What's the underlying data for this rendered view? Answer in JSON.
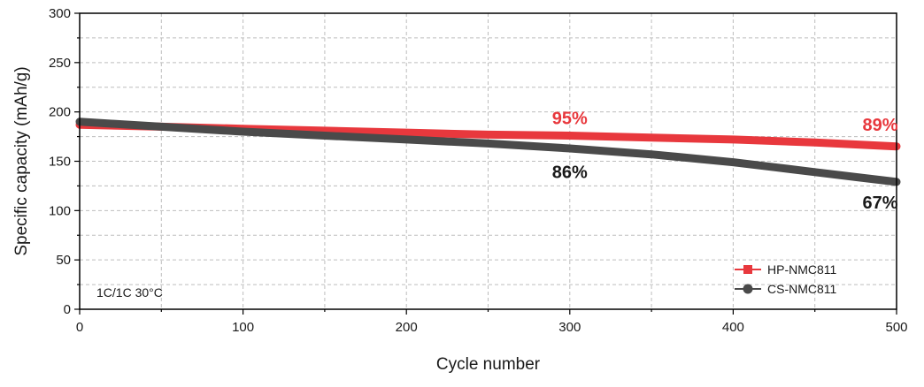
{
  "chart_data": {
    "type": "line",
    "xlabel": "Cycle number",
    "ylabel": "Specific capacity (mAh/g)",
    "xlim": [
      0,
      500
    ],
    "ylim": [
      0,
      300
    ],
    "xticks": [
      0,
      100,
      200,
      300,
      400,
      500
    ],
    "yticks": [
      0,
      50,
      100,
      150,
      200,
      250,
      300
    ],
    "grid": true,
    "legend_position": "bottom-right",
    "condition_label": "1C/1C 30°C",
    "series": [
      {
        "name": "HP-NMC811",
        "color": "#e8383d",
        "marker": "square",
        "x": [
          0,
          50,
          100,
          150,
          200,
          250,
          300,
          350,
          400,
          450,
          500
        ],
        "y": [
          187,
          185,
          183,
          181,
          179,
          177,
          176,
          174,
          172,
          169,
          165
        ]
      },
      {
        "name": "CS-NMC811",
        "color": "#4a4a4a",
        "marker": "circle",
        "x": [
          0,
          50,
          100,
          150,
          200,
          250,
          300,
          350,
          400,
          425,
          450,
          475,
          500
        ],
        "y": [
          190,
          185,
          180,
          176,
          172,
          168,
          163,
          157,
          149,
          144,
          139,
          134,
          129
        ]
      }
    ],
    "annotations": [
      {
        "text": "95%",
        "x": 300,
        "y": 177,
        "color": "#e8383d",
        "anchor": "above"
      },
      {
        "text": "89%",
        "x": 490,
        "y": 170,
        "color": "#e8383d",
        "anchor": "above"
      },
      {
        "text": "86%",
        "x": 300,
        "y": 160,
        "color": "#1a1a1a",
        "anchor": "below"
      },
      {
        "text": "67%",
        "x": 490,
        "y": 129,
        "color": "#1a1a1a",
        "anchor": "below"
      }
    ]
  }
}
